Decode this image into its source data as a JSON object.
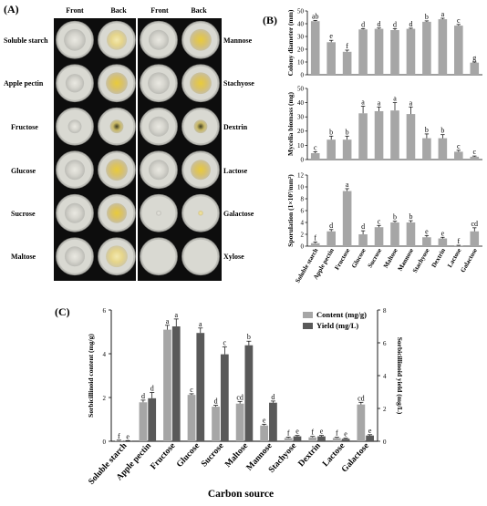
{
  "panel_a": {
    "letter": "(A)",
    "headers": [
      "Front",
      "Back",
      "Front",
      "Back"
    ],
    "left_labels": [
      "Soluble starch",
      "Apple pectin",
      "Fructose",
      "Glucose",
      "Sucrose",
      "Maltose"
    ],
    "right_labels": [
      "Mannose",
      "Stachyose",
      "Dextrin",
      "Lactose",
      "Galactose",
      "Xylose"
    ]
  },
  "panel_b": {
    "letter": "(B)",
    "charts": [
      {
        "ylabel": "Colony diameter (mm)",
        "ylim": [
          0,
          50
        ],
        "ticks": [
          0,
          10,
          20,
          30,
          40,
          50
        ],
        "values": [
          42,
          25.5,
          18,
          35.5,
          36,
          35,
          36,
          41.5,
          43.5,
          38.5,
          9.5
        ],
        "errors": [
          0.6,
          1.5,
          1.3,
          0.7,
          0.6,
          1.2,
          0.5,
          0.7,
          0.8,
          0.9,
          0.5
        ],
        "sig": [
          "ab",
          "e",
          "f",
          "d",
          "d",
          "d",
          "d",
          "b",
          "a",
          "c",
          "g"
        ]
      },
      {
        "ylabel": "Mycelia biomass (mg)",
        "ylim": [
          0,
          50
        ],
        "ticks": [
          0,
          10,
          20,
          30,
          40,
          50
        ],
        "values": [
          4.5,
          14,
          14,
          32.5,
          34,
          34.5,
          32,
          15,
          15,
          5.5,
          2
        ],
        "errors": [
          1,
          2.5,
          2.5,
          5,
          3,
          5.5,
          5,
          3,
          2.5,
          1,
          0.5
        ],
        "sig": [
          "c",
          "b",
          "b",
          "a",
          "a",
          "a",
          "a",
          "b",
          "b",
          "c",
          "c"
        ]
      },
      {
        "ylabel": "Sporulation (1×10⁷/mm²)",
        "ylim": [
          0,
          12
        ],
        "ticks": [
          0,
          2,
          4,
          6,
          8,
          10,
          12
        ],
        "values": [
          0.5,
          2.5,
          9.3,
          2,
          3.2,
          4,
          4,
          1.5,
          1.3,
          0.1,
          2.5
        ],
        "errors": [
          0.2,
          0.3,
          0.4,
          0.6,
          0.3,
          0.2,
          0.3,
          0.3,
          0.2,
          0.05,
          0.6
        ],
        "sig": [
          "f",
          "d",
          "a",
          "d",
          "c",
          "b",
          "b",
          "e",
          "e",
          "f",
          "cd"
        ]
      }
    ],
    "categories": [
      "Soluble starch",
      "Apple pectin",
      "Fructose",
      "Glucose",
      "Sucrose",
      "Maltose",
      "Mannose",
      "Stachyose",
      "Dextrin",
      "Lactose",
      "Galactose"
    ]
  },
  "chart_data": {
    "type": "bar",
    "title": "",
    "xlabel": "Carbon source",
    "ylabel": "Sorbicillinoid content (mg/g)",
    "y2label": "Sorbicillinoid yield (mg/L)",
    "ylim": [
      0,
      6
    ],
    "y2lim": [
      0,
      8
    ],
    "yticks": [
      0,
      2,
      4,
      6
    ],
    "y2ticks": [
      0,
      2,
      4,
      6,
      8
    ],
    "categories": [
      "Soluble starch",
      "Apple pectin",
      "Fructose",
      "Glucose",
      "Sucrose",
      "Maltose",
      "Mannose",
      "Stachyose",
      "Dextrin",
      "Lactose",
      "Galactose"
    ],
    "legend_position": "top-right",
    "series": [
      {
        "name": "Content (mg/g)",
        "axis": "left",
        "color": "#a6a6a6",
        "values": [
          0.03,
          1.78,
          5.1,
          2.12,
          1.58,
          1.72,
          0.72,
          0.15,
          0.18,
          0.15,
          1.68
        ],
        "errors": [
          0.02,
          0.1,
          0.2,
          0.05,
          0.06,
          0.1,
          0.06,
          0.04,
          0.04,
          0.03,
          0.1
        ],
        "sig": [
          "f",
          "d",
          "a",
          "c",
          "d",
          "cd",
          "e",
          "f",
          "f",
          "f",
          "cd"
        ]
      },
      {
        "name": "Yield (mg/L)",
        "axis": "right",
        "color": "#595959",
        "values": [
          0.02,
          2.62,
          7.0,
          6.6,
          5.3,
          5.85,
          2.35,
          0.3,
          0.3,
          0.15,
          0.35
        ],
        "errors": [
          0.02,
          0.35,
          0.45,
          0.3,
          0.45,
          0.25,
          0.1,
          0.05,
          0.05,
          0.04,
          0.05
        ],
        "sig": [
          "e",
          "d",
          "a",
          "a",
          "c",
          "b",
          "d",
          "e",
          "e",
          "e",
          "e"
        ]
      }
    ]
  },
  "panel_c": {
    "letter": "(C)"
  }
}
